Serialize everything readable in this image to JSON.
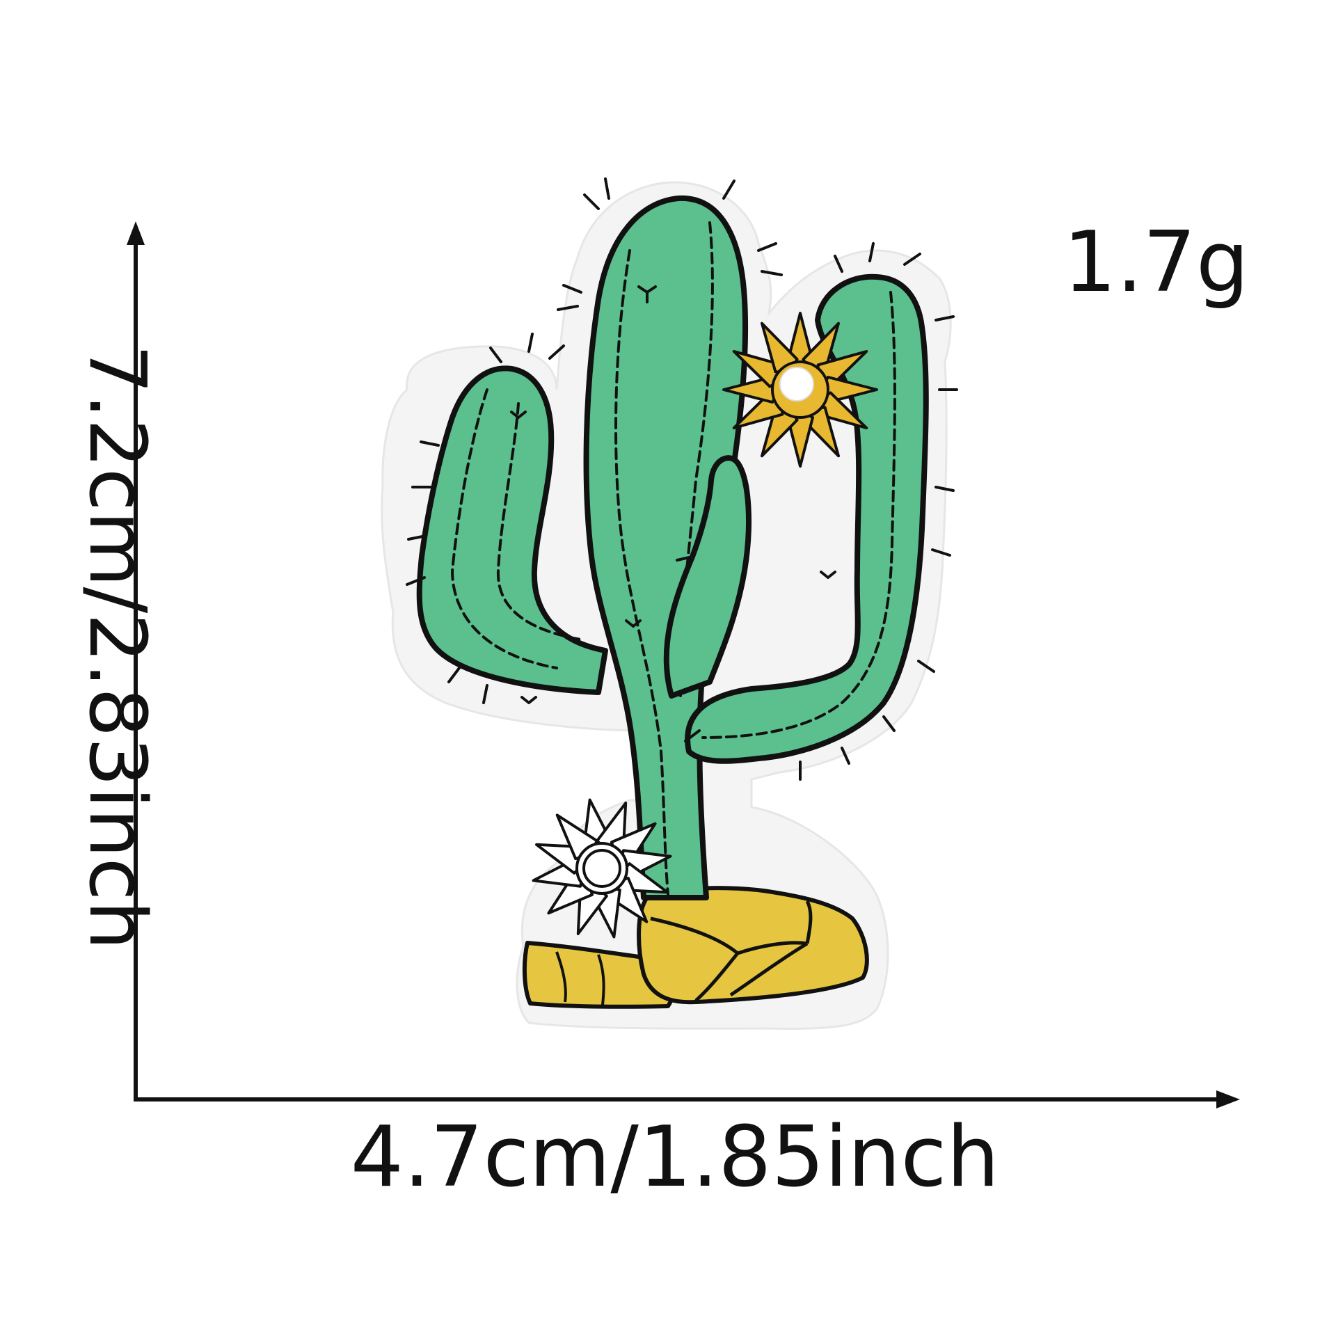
{
  "dimensions": {
    "width_text": "4.7cm/1.85inch",
    "height_text": "7.2cm/2.83inch",
    "weight_text": "1.7g"
  },
  "product": {
    "subject": "cactus-embroidered-patch"
  },
  "colors": {
    "background": "#ffffff",
    "felt_backing": "#f4f4f4",
    "cactus_green": "#5bbf8e",
    "stitch_black": "#111111",
    "flower_yellow": "#e8b830",
    "rock_yellow": "#e6c640",
    "flower_white": "#ffffff"
  }
}
